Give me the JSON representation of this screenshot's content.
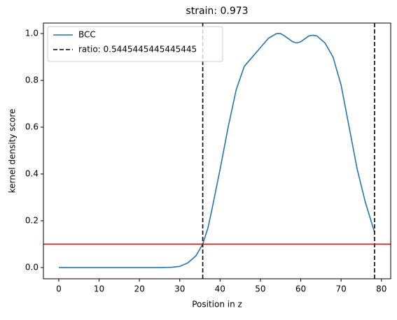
{
  "chart_data": {
    "type": "line",
    "title": "strain: 0.973",
    "xlabel": "Position in z",
    "ylabel": "kernel density score",
    "x": [
      0,
      10,
      20,
      25,
      28,
      30,
      32,
      34,
      35.7,
      37,
      38,
      40,
      42,
      44,
      46,
      48,
      50,
      52,
      54,
      55,
      56,
      58,
      59,
      60,
      62,
      63,
      64,
      66,
      68,
      70,
      72,
      74,
      76,
      78.3
    ],
    "series": [
      {
        "name": "BCC",
        "color": "#1f77b4",
        "values": [
          0,
          0,
          0,
          0,
          0.001,
          0.005,
          0.02,
          0.05,
          0.1,
          0.17,
          0.25,
          0.42,
          0.6,
          0.76,
          0.86,
          0.9,
          0.94,
          0.98,
          1.0,
          1.0,
          0.99,
          0.965,
          0.96,
          0.965,
          0.99,
          0.993,
          0.99,
          0.96,
          0.9,
          0.78,
          0.6,
          0.42,
          0.28,
          0.15
        ]
      }
    ],
    "vlines": {
      "name": "ratio: 0.5445445445445445",
      "color": "#000000",
      "values": [
        35.7,
        78.3
      ]
    },
    "hline": {
      "value": 0.1,
      "color": "#ff0000"
    },
    "xlim": [
      -3.8,
      82.3
    ],
    "ylim": [
      -0.048,
      1.045
    ],
    "xticks": [
      0,
      10,
      20,
      30,
      40,
      50,
      60,
      70,
      80
    ],
    "yticks": [
      {
        "value": 0,
        "label": "0.0"
      },
      0.2,
      0.4,
      0.6,
      0.8,
      {
        "value": 1,
        "label": "1.0"
      }
    ],
    "legend": "upper left"
  }
}
